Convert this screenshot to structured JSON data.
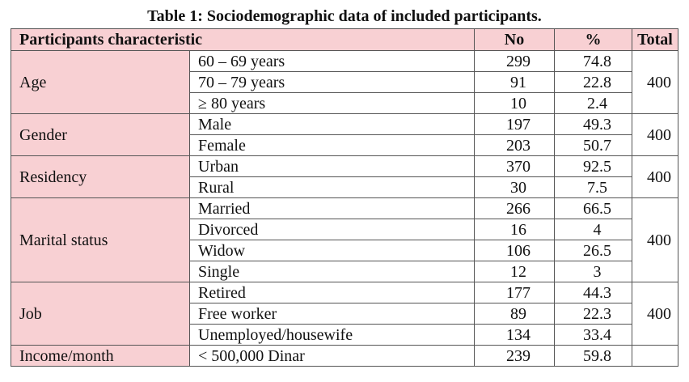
{
  "title": "Table 1: Sociodemographic data of included participants.",
  "headers": {
    "characteristic": "Participants characteristic",
    "no": "No",
    "percent": "%",
    "total": "Total"
  },
  "groups": [
    {
      "label": "Age",
      "total": "400",
      "rows": [
        {
          "sub": "60 – 69 years",
          "no": "299",
          "pct": "74.8"
        },
        {
          "sub": "70 – 79 years",
          "no": "91",
          "pct": "22.8"
        },
        {
          "sub": "≥ 80 years",
          "no": "10",
          "pct": "2.4"
        }
      ]
    },
    {
      "label": "Gender",
      "total": "400",
      "rows": [
        {
          "sub": "Male",
          "no": "197",
          "pct": "49.3"
        },
        {
          "sub": "Female",
          "no": "203",
          "pct": "50.7"
        }
      ]
    },
    {
      "label": "Residency",
      "total": "400",
      "rows": [
        {
          "sub": "Urban",
          "no": "370",
          "pct": "92.5"
        },
        {
          "sub": "Rural",
          "no": "30",
          "pct": "7.5"
        }
      ]
    },
    {
      "label": "Marital status",
      "total": "400",
      "rows": [
        {
          "sub": "Married",
          "no": "266",
          "pct": "66.5"
        },
        {
          "sub": "Divorced",
          "no": "16",
          "pct": "4"
        },
        {
          "sub": "Widow",
          "no": "106",
          "pct": "26.5"
        },
        {
          "sub": "Single",
          "no": "12",
          "pct": "3"
        }
      ]
    },
    {
      "label": "Job",
      "total": "400",
      "rows": [
        {
          "sub": "Retired",
          "no": "177",
          "pct": "44.3"
        },
        {
          "sub": "Free worker",
          "no": "89",
          "pct": "22.3"
        },
        {
          "sub": "Unemployed/housewife",
          "no": "134",
          "pct": "33.4"
        }
      ]
    },
    {
      "label": "Income/month",
      "total": "",
      "rows": [
        {
          "sub": "< 500,000 Dinar",
          "no": "239",
          "pct": "59.8"
        }
      ]
    }
  ]
}
